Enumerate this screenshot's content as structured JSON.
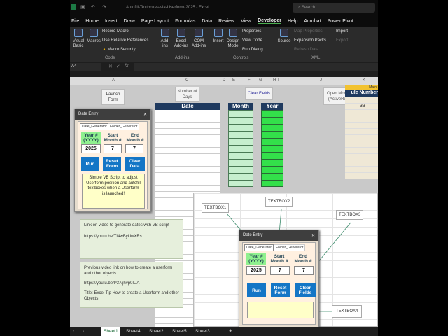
{
  "window": {
    "title": "Autofill-Textboxes-via-Userform-2025 - Excel",
    "search": "Search"
  },
  "menu": [
    "File",
    "Home",
    "Insert",
    "Draw",
    "Page Layout",
    "Formulas",
    "Data",
    "Review",
    "View",
    "Developer",
    "Help",
    "Acrobat",
    "Power Pivot"
  ],
  "ribbon": {
    "code": {
      "visual_basic": "Visual Basic",
      "macros": "Macros",
      "record": "Record Macro",
      "relative": "Use Relative References",
      "security": "Macro Security",
      "group": "Code"
    },
    "addins": {
      "addins": "Add-ins",
      "excel": "Excel Add-ins",
      "com": "COM Add-ins",
      "group": "Add-ins"
    },
    "controls": {
      "insert": "Insert",
      "design": "Design Mode",
      "properties": "Properties",
      "view_code": "View Code",
      "run_dialog": "Run Dialog",
      "group": "Controls"
    },
    "xml": {
      "source": "Source",
      "map": "Map Properties",
      "expansion": "Expansion Packs",
      "refresh": "Refresh Data",
      "import": "Import",
      "export": "Export",
      "group": "XML"
    }
  },
  "formula_bar": {
    "name_box": "A4",
    "fx": "fx",
    "value": ""
  },
  "columns": [
    "A",
    "C",
    "D",
    "E",
    "F",
    "G",
    "H",
    "I",
    "J",
    "K"
  ],
  "sheet": {
    "launch_form": "Launch Form",
    "number_of_days": "Number of Days",
    "clear_fields": "Clear Fields",
    "open_module": "Open Module (ActiveRow)",
    "date_header": "Date",
    "month_header": "Month",
    "year_header": "Year",
    "k_top": "Main",
    "k_header": "ule Number",
    "k_value": "33"
  },
  "form1": {
    "title": "Date Entry",
    "tab1": "Date_Generator",
    "tab2": "Folder_Generator",
    "year_label": "Year # (YYYY)",
    "start_label": "Start Month #",
    "end_label": "End Month #",
    "year": "2025",
    "start": "7",
    "end": "7",
    "run": "Run",
    "reset": "Reset Form",
    "clear": "Clear Data",
    "note": "Simple VB Script to adjust Userform position and autofill textboxes when a Userform is launched!"
  },
  "notes": {
    "n1_line1": "Link on video to generate dates with VB script",
    "n1_line2": "https://youtu.be/TI4wByUwXRs",
    "n2_line1": "Previous video link on how to create a userform and other objects",
    "n2_line2": "https://youtu.be/PXNjhvp0IUA",
    "n2_line3": "Title: Excel Tip How to create a Userform and other Objects"
  },
  "form2": {
    "title": "Date Entry",
    "tab1": "Date_Generator",
    "tab2": "Folder_Generator",
    "year_label": "Year # (YYYY)",
    "start_label": "Start Month #",
    "end_label": "End Month #",
    "year": "2025",
    "start": "7",
    "end": "7",
    "run": "Run",
    "reset": "Reset Form",
    "clear": "Clear Fields",
    "note": ""
  },
  "callouts": [
    "TEXTBOX1",
    "TEXTBOX2",
    "TEXTBOX3",
    "TEXTBOX4"
  ],
  "sheet_tabs": [
    "Sheet1",
    "Sheet4",
    "Sheet2",
    "Sheet5",
    "Sheet3"
  ],
  "add_sheet": "+",
  "colors": {
    "navy": "#1f3a5f",
    "light_green": "#c6efce",
    "bright_green": "#33e04a",
    "button_blue": "#1476c6",
    "note_yellow": "#ffffc8"
  }
}
